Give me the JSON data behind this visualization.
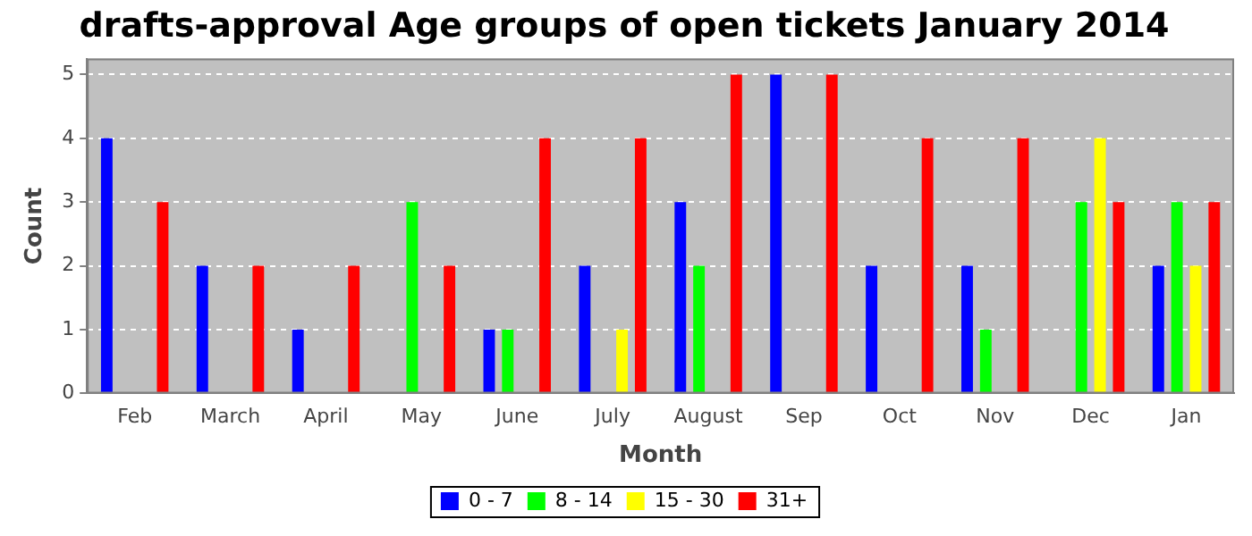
{
  "chart_data": {
    "type": "bar",
    "title": "drafts-approval Age groups of open tickets January 2014",
    "xlabel": "Month",
    "ylabel": "Count",
    "categories": [
      "Feb",
      "March",
      "April",
      "May",
      "June",
      "July",
      "August",
      "Sep",
      "Oct",
      "Nov",
      "Dec",
      "Jan"
    ],
    "series": [
      {
        "name": "0 - 7",
        "color": "#0000ff",
        "values": [
          4,
          2,
          1,
          null,
          1,
          2,
          3,
          5,
          2,
          2,
          null,
          2
        ]
      },
      {
        "name": "8 - 14",
        "color": "#00ff00",
        "values": [
          null,
          null,
          null,
          3,
          1,
          null,
          2,
          null,
          null,
          1,
          3,
          3
        ]
      },
      {
        "name": "15 - 30",
        "color": "#ffff00",
        "values": [
          null,
          null,
          null,
          null,
          null,
          1,
          null,
          null,
          null,
          null,
          4,
          2
        ]
      },
      {
        "name": "31+",
        "color": "#ff0000",
        "values": [
          3,
          2,
          2,
          2,
          4,
          4,
          5,
          5,
          4,
          4,
          3,
          3
        ]
      }
    ],
    "ylim": [
      0,
      5.25
    ],
    "yticks": [
      0,
      1,
      2,
      3,
      4,
      5
    ],
    "grid": "y",
    "legend": "bottom"
  }
}
